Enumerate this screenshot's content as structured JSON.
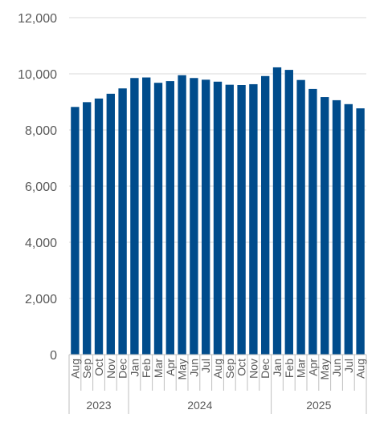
{
  "chart_data": {
    "type": "bar",
    "categories": [
      "Aug",
      "Sep",
      "Oct",
      "Nov",
      "Dec",
      "Jan",
      "Feb",
      "Mar",
      "Apr",
      "May",
      "Jun",
      "Jul",
      "Aug",
      "Sep",
      "Oct",
      "Nov",
      "Dec",
      "Jan",
      "Feb",
      "Mar",
      "Apr",
      "May",
      "Jun",
      "Jul",
      "Aug"
    ],
    "year_groups": [
      {
        "label": "2023",
        "count": 5
      },
      {
        "label": "2024",
        "count": 12
      },
      {
        "label": "2025",
        "count": 8
      }
    ],
    "values": [
      8820,
      8990,
      9120,
      9290,
      9480,
      9850,
      9870,
      9680,
      9740,
      9950,
      9850,
      9790,
      9720,
      9610,
      9600,
      9630,
      9920,
      10230,
      10140,
      9780,
      9460,
      9170,
      9060,
      8920,
      8770
    ],
    "ylim": [
      0,
      12000
    ],
    "yticks": [
      0,
      2000,
      4000,
      6000,
      8000,
      10000,
      12000
    ],
    "ytick_labels": [
      "0",
      "2,000",
      "4,000",
      "6,000",
      "8,000",
      "10,000",
      "12,000"
    ],
    "bar_color": "#004C8C",
    "grid": true,
    "grid_color": "#d9d9d9",
    "axis_color": "#bfbfbf",
    "text_color": "#595959"
  }
}
